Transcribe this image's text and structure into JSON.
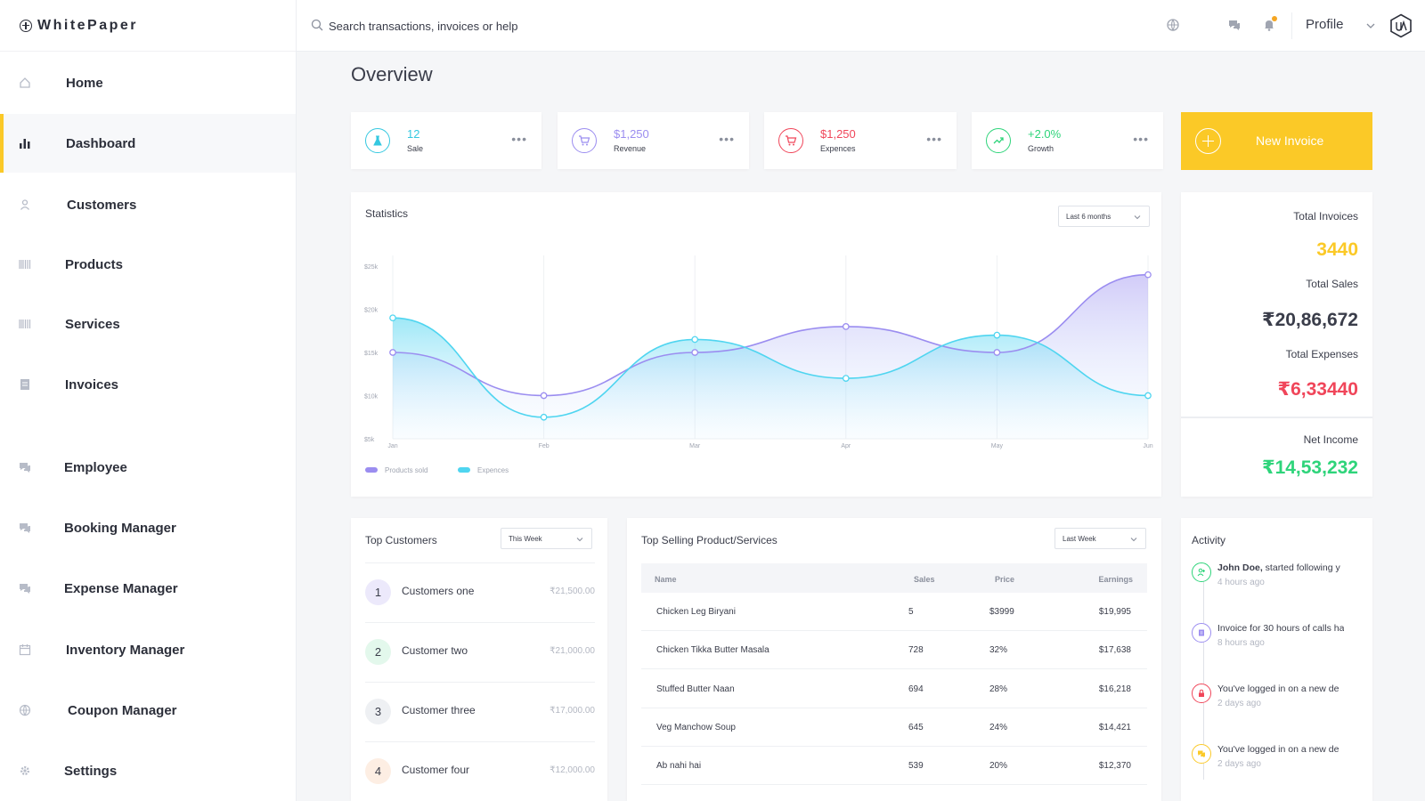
{
  "app": {
    "name": "WhitePaper"
  },
  "sidebar": {
    "items": [
      {
        "label": "Home",
        "icon": "home-icon"
      },
      {
        "label": "Dashboard",
        "icon": "bar-chart-icon",
        "active": true
      },
      {
        "label": "Customers",
        "icon": "user-icon"
      },
      {
        "label": "Products",
        "icon": "barcode-icon"
      },
      {
        "label": "Services",
        "icon": "barcode-icon"
      },
      {
        "label": "Invoices",
        "icon": "document-icon"
      },
      {
        "label": "Employee",
        "icon": "chat-icon"
      },
      {
        "label": "Booking Manager",
        "icon": "chat-icon"
      },
      {
        "label": "Expense Manager",
        "icon": "chat-icon"
      },
      {
        "label": "Inventory Manager",
        "icon": "calendar-icon"
      },
      {
        "label": "Coupon Manager",
        "icon": "globe-icon"
      },
      {
        "label": "Settings",
        "icon": "gear-icon"
      }
    ]
  },
  "topbar": {
    "search_placeholder": "Search transactions, invoices or help",
    "profile_label": "Profile"
  },
  "page": {
    "title": "Overview"
  },
  "kpis": [
    {
      "value": "12",
      "label": "Sale",
      "color": "#35c8e0",
      "icon": "flask-icon"
    },
    {
      "value": "$1,250",
      "label": "Revenue",
      "color": "#9b8df0",
      "icon": "cart-icon"
    },
    {
      "value": "$1,250",
      "label": "Expences",
      "color": "#f0465a",
      "icon": "cart-icon"
    },
    {
      "value": "+2.0%",
      "label": "Growth",
      "color": "#2ed47a",
      "icon": "trend-icon"
    }
  ],
  "new_invoice": {
    "label": "New Invoice",
    "color": "#fbc927"
  },
  "statistics": {
    "title": "Statistics",
    "range_selected": "Last 6 months"
  },
  "chart_data": {
    "type": "area",
    "title": "Statistics",
    "categories": [
      "Jan",
      "Feb",
      "Mar",
      "Apr",
      "May",
      "Jun"
    ],
    "y_ticks": [
      "$5k",
      "$10k",
      "$15k",
      "$20k",
      "$25k"
    ],
    "ylim": [
      5,
      25
    ],
    "series": [
      {
        "name": "Products sold",
        "color": "#9b8df0",
        "values": [
          15,
          10,
          15,
          18,
          15,
          24
        ]
      },
      {
        "name": "Expences",
        "color": "#4fd5f0",
        "values": [
          19,
          7.5,
          16.5,
          12,
          17,
          10
        ]
      }
    ],
    "legend": "bottom-left",
    "grid": true
  },
  "summary": {
    "total_invoices_label": "Total Invoices",
    "total_invoices_value": "3440",
    "total_sales_label": "Total Sales",
    "total_sales_value": "₹20,86,672",
    "total_expenses_label": "Total Expenses",
    "total_expenses_value": "₹6,33440",
    "net_income_label": "Net Income",
    "net_income_value": "₹14,53,232",
    "colors": {
      "invoices": "#fbc927",
      "sales": "#3a3d4a",
      "expenses": "#f0465a",
      "net": "#2ed47a"
    }
  },
  "top_customers": {
    "title": "Top Customers",
    "range_selected": "This Week",
    "items": [
      {
        "rank": "1",
        "name": "Customers one",
        "amount": "₹21,500.00",
        "bg": "#ece9fb"
      },
      {
        "rank": "2",
        "name": "Customer two",
        "amount": "₹21,000.00",
        "bg": "#e3f8ec"
      },
      {
        "rank": "3",
        "name": "Customer three",
        "amount": "₹17,000.00",
        "bg": "#eef0f3"
      },
      {
        "rank": "4",
        "name": "Customer four",
        "amount": "₹12,000.00",
        "bg": "#fdeee3"
      }
    ]
  },
  "top_selling": {
    "title": "Top Selling Product/Services",
    "range_selected": "Last Week",
    "columns": [
      "Name",
      "Sales",
      "Price",
      "Earnings"
    ],
    "rows": [
      [
        "Chicken Leg Biryani",
        "5",
        "$3999",
        "$19,995"
      ],
      [
        "Chicken Tikka Butter Masala",
        "728",
        "32%",
        "$17,638"
      ],
      [
        "Stuffed Butter Naan",
        "694",
        "28%",
        "$16,218"
      ],
      [
        "Veg Manchow Soup",
        "645",
        "24%",
        "$14,421"
      ],
      [
        "Ab nahi hai",
        "539",
        "20%",
        "$12,370"
      ]
    ]
  },
  "activity": {
    "title": "Activity",
    "items": [
      {
        "bold": "John Doe,",
        "text": " started following y",
        "time": "4 hours ago",
        "color": "#2ed47a",
        "icon": "user-plus-icon"
      },
      {
        "bold": "",
        "text": "Invoice for 30 hours of calls ha",
        "time": "8 hours ago",
        "color": "#9b8df0",
        "icon": "invoice-icon"
      },
      {
        "bold": "",
        "text": "You've logged in on a new de",
        "time": "2 days ago",
        "color": "#f0465a",
        "icon": "lock-icon"
      },
      {
        "bold": "",
        "text": "You've logged in on a new de",
        "time": "2 days ago",
        "color": "#fbc927",
        "icon": "chat-icon"
      }
    ]
  }
}
